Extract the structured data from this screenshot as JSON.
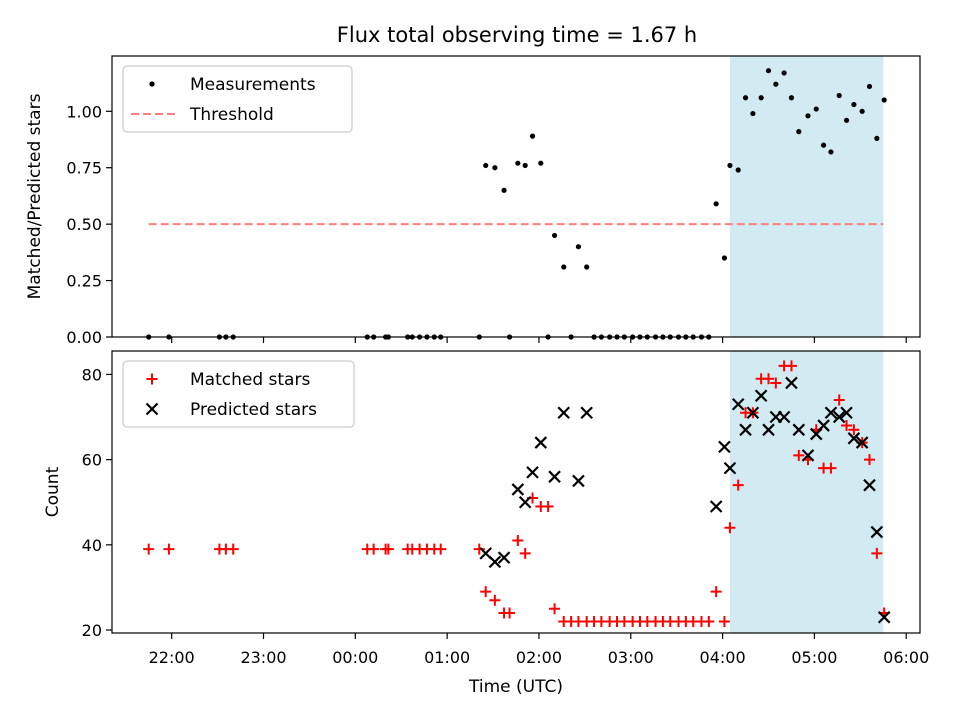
{
  "title": "Flux total observing time = 1.67 h",
  "colors": {
    "highlight": "#add8e6",
    "threshold": "#ff7f7f",
    "measurement": "#000000",
    "matched": "#ff0000",
    "predicted": "#000000"
  },
  "chart_data": [
    {
      "type": "scatter",
      "ylabel": "Matched/Predicted stars",
      "ylim": [
        0,
        1.245
      ],
      "yticks": [
        "0.00",
        "0.25",
        "0.50",
        "0.75",
        "1.00"
      ],
      "ytick_values": [
        0,
        0.25,
        0.5,
        0.75,
        1.0
      ],
      "xlim": [
        -2.65,
        6.15
      ],
      "highlight_span": [
        4.08,
        5.75
      ],
      "legend": {
        "placement": "upper-left",
        "entries": [
          "Measurements",
          "Threshold"
        ]
      },
      "threshold": {
        "name": "Threshold",
        "y": 0.5,
        "x_range": [
          -2.25,
          5.75
        ]
      },
      "series": [
        {
          "name": "Measurements",
          "x": [
            -2.25,
            -2.03,
            -1.48,
            -1.41,
            -1.33,
            0.13,
            0.2,
            0.33,
            0.36,
            0.57,
            0.62,
            0.7,
            0.78,
            0.86,
            0.93,
            1.35,
            1.42,
            1.52,
            1.62,
            1.68,
            1.77,
            1.85,
            1.93,
            2.02,
            2.1,
            2.17,
            2.27,
            2.35,
            2.43,
            2.52,
            2.6,
            2.68,
            2.77,
            2.85,
            2.93,
            3.02,
            3.1,
            3.18,
            3.27,
            3.35,
            3.43,
            3.52,
            3.6,
            3.68,
            3.77,
            3.85,
            3.93,
            4.02,
            4.08,
            4.17,
            4.25,
            4.33,
            4.42,
            4.5,
            4.58,
            4.67,
            4.75,
            4.83,
            4.93,
            5.02,
            5.1,
            5.18,
            5.27,
            5.35,
            5.43,
            5.52,
            5.6,
            5.68,
            5.76
          ],
          "y": [
            0,
            0,
            0,
            0,
            0,
            0,
            0,
            0,
            0,
            0,
            0,
            0,
            0,
            0,
            0,
            0,
            0.76,
            0.75,
            0.65,
            0,
            0.77,
            0.76,
            0.89,
            0.77,
            0,
            0.45,
            0.31,
            0,
            0.4,
            0.31,
            0,
            0,
            0,
            0,
            0,
            0,
            0,
            0,
            0,
            0,
            0,
            0,
            0,
            0,
            0,
            0,
            0.59,
            0.35,
            0.76,
            0.74,
            1.06,
            0.99,
            1.06,
            1.18,
            1.12,
            1.17,
            1.06,
            0.91,
            0.98,
            1.01,
            0.85,
            0.82,
            1.07,
            0.96,
            1.03,
            1.0,
            1.11,
            0.88,
            1.05
          ]
        }
      ]
    },
    {
      "type": "scatter",
      "xlabel": "Time (UTC)",
      "ylabel": "Count",
      "ylim": [
        19.3,
        85.5
      ],
      "yticks": [
        "20",
        "40",
        "60",
        "80"
      ],
      "ytick_values": [
        20,
        40,
        60,
        80
      ],
      "xlim": [
        -2.65,
        6.15
      ],
      "xticks": [
        "22:00",
        "23:00",
        "00:00",
        "01:00",
        "02:00",
        "03:00",
        "04:00",
        "05:00",
        "06:00"
      ],
      "xtick_values": [
        -2,
        -1,
        0,
        1,
        2,
        3,
        4,
        5,
        6
      ],
      "highlight_span": [
        4.08,
        5.75
      ],
      "legend": {
        "placement": "upper-left",
        "entries": [
          "Matched stars",
          "Predicted stars"
        ]
      },
      "series": [
        {
          "name": "Matched stars",
          "x": [
            -2.25,
            -2.03,
            -1.48,
            -1.41,
            -1.33,
            0.13,
            0.2,
            0.33,
            0.36,
            0.57,
            0.62,
            0.7,
            0.78,
            0.86,
            0.93,
            1.35,
            1.42,
            1.52,
            1.62,
            1.68,
            1.77,
            1.85,
            1.93,
            2.02,
            2.1,
            2.17,
            2.27,
            2.35,
            2.43,
            2.52,
            2.6,
            2.68,
            2.77,
            2.85,
            2.93,
            3.02,
            3.1,
            3.18,
            3.27,
            3.35,
            3.43,
            3.52,
            3.6,
            3.68,
            3.77,
            3.85,
            3.93,
            4.02,
            4.08,
            4.17,
            4.25,
            4.33,
            4.42,
            4.5,
            4.58,
            4.67,
            4.75,
            4.83,
            4.93,
            5.02,
            5.1,
            5.18,
            5.27,
            5.35,
            5.43,
            5.52,
            5.6,
            5.68,
            5.76
          ],
          "y": [
            39,
            39,
            39,
            39,
            39,
            39,
            39,
            39,
            39,
            39,
            39,
            39,
            39,
            39,
            39,
            39,
            29,
            27,
            24,
            24,
            41,
            38,
            51,
            49,
            49,
            25,
            22,
            22,
            22,
            22,
            22,
            22,
            22,
            22,
            22,
            22,
            22,
            22,
            22,
            22,
            22,
            22,
            22,
            22,
            22,
            22,
            29,
            22,
            44,
            54,
            71,
            71,
            79,
            79,
            78,
            82,
            82,
            61,
            60,
            67,
            58,
            58,
            74,
            68,
            67,
            64,
            60,
            38,
            24
          ]
        },
        {
          "name": "Predicted stars",
          "x": [
            1.42,
            1.52,
            1.62,
            1.77,
            1.85,
            1.93,
            2.02,
            2.17,
            2.27,
            2.43,
            2.52,
            3.93,
            4.02,
            4.08,
            4.17,
            4.25,
            4.33,
            4.42,
            4.5,
            4.58,
            4.67,
            4.75,
            4.83,
            4.93,
            5.02,
            5.1,
            5.18,
            5.27,
            5.35,
            5.43,
            5.52,
            5.6,
            5.68,
            5.76
          ],
          "y": [
            38,
            36,
            37,
            53,
            50,
            57,
            64,
            56,
            71,
            55,
            71,
            49,
            63,
            58,
            73,
            67,
            71,
            75,
            67,
            70,
            70,
            78,
            67,
            61,
            66,
            68,
            71,
            70,
            71,
            65,
            64,
            54,
            43,
            23
          ]
        }
      ]
    }
  ]
}
